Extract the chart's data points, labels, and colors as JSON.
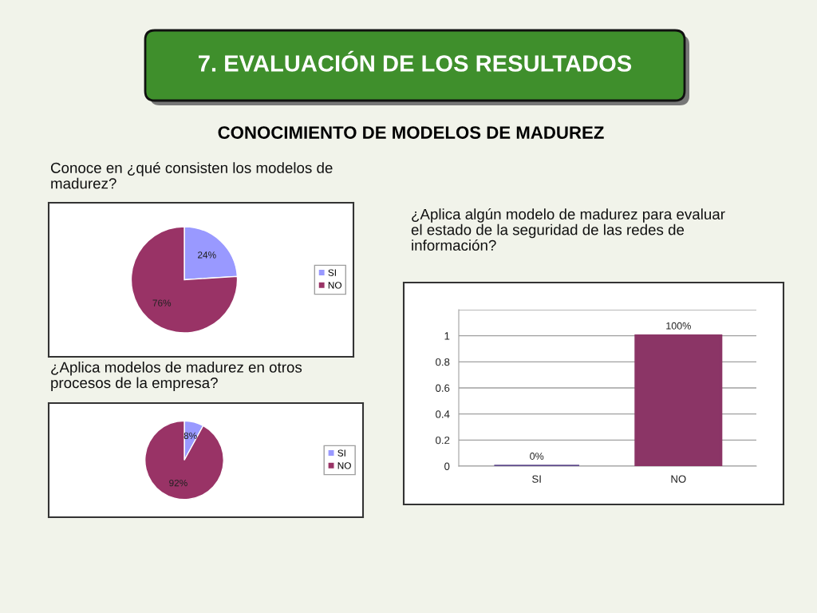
{
  "chart_data": [
    {
      "type": "other",
      "title": "7. EVALUACIÓN DE LOS RESULTADOS",
      "subtitle": "CONOCIMIENTO DE MODELOS DE MADUREZ"
    },
    {
      "type": "pie",
      "title": "Conoce en ¿qué consisten los modelos de madurez?",
      "categories": [
        "SI",
        "NO"
      ],
      "values": [
        24,
        76
      ],
      "colors": [
        "#9999ff",
        "#993366"
      ],
      "value_labels": [
        "24%",
        "76%"
      ],
      "legend": "right"
    },
    {
      "type": "pie",
      "title": "¿Aplica modelos de madurez en otros procesos de la empresa?",
      "categories": [
        "SI",
        "NO"
      ],
      "values": [
        8,
        92
      ],
      "colors": [
        "#9999ff",
        "#993366"
      ],
      "value_labels": [
        "8%",
        "92%"
      ],
      "legend": "right"
    },
    {
      "type": "bar",
      "title": "¿Aplica algún modelo de madurez para evaluar el estado de la seguridad de las redes de información?",
      "categories": [
        "SI",
        "NO"
      ],
      "values": [
        0,
        1
      ],
      "colors": [
        "#5f4a8b",
        "#8b3566"
      ],
      "value_labels": [
        "0%",
        "100%"
      ],
      "ylim": [
        0,
        1.2
      ],
      "yticks": [
        0,
        0.2,
        0.4,
        0.6,
        0.8,
        1,
        {
          "value": 1.2,
          "label": null
        }
      ],
      "grid": "y"
    }
  ]
}
